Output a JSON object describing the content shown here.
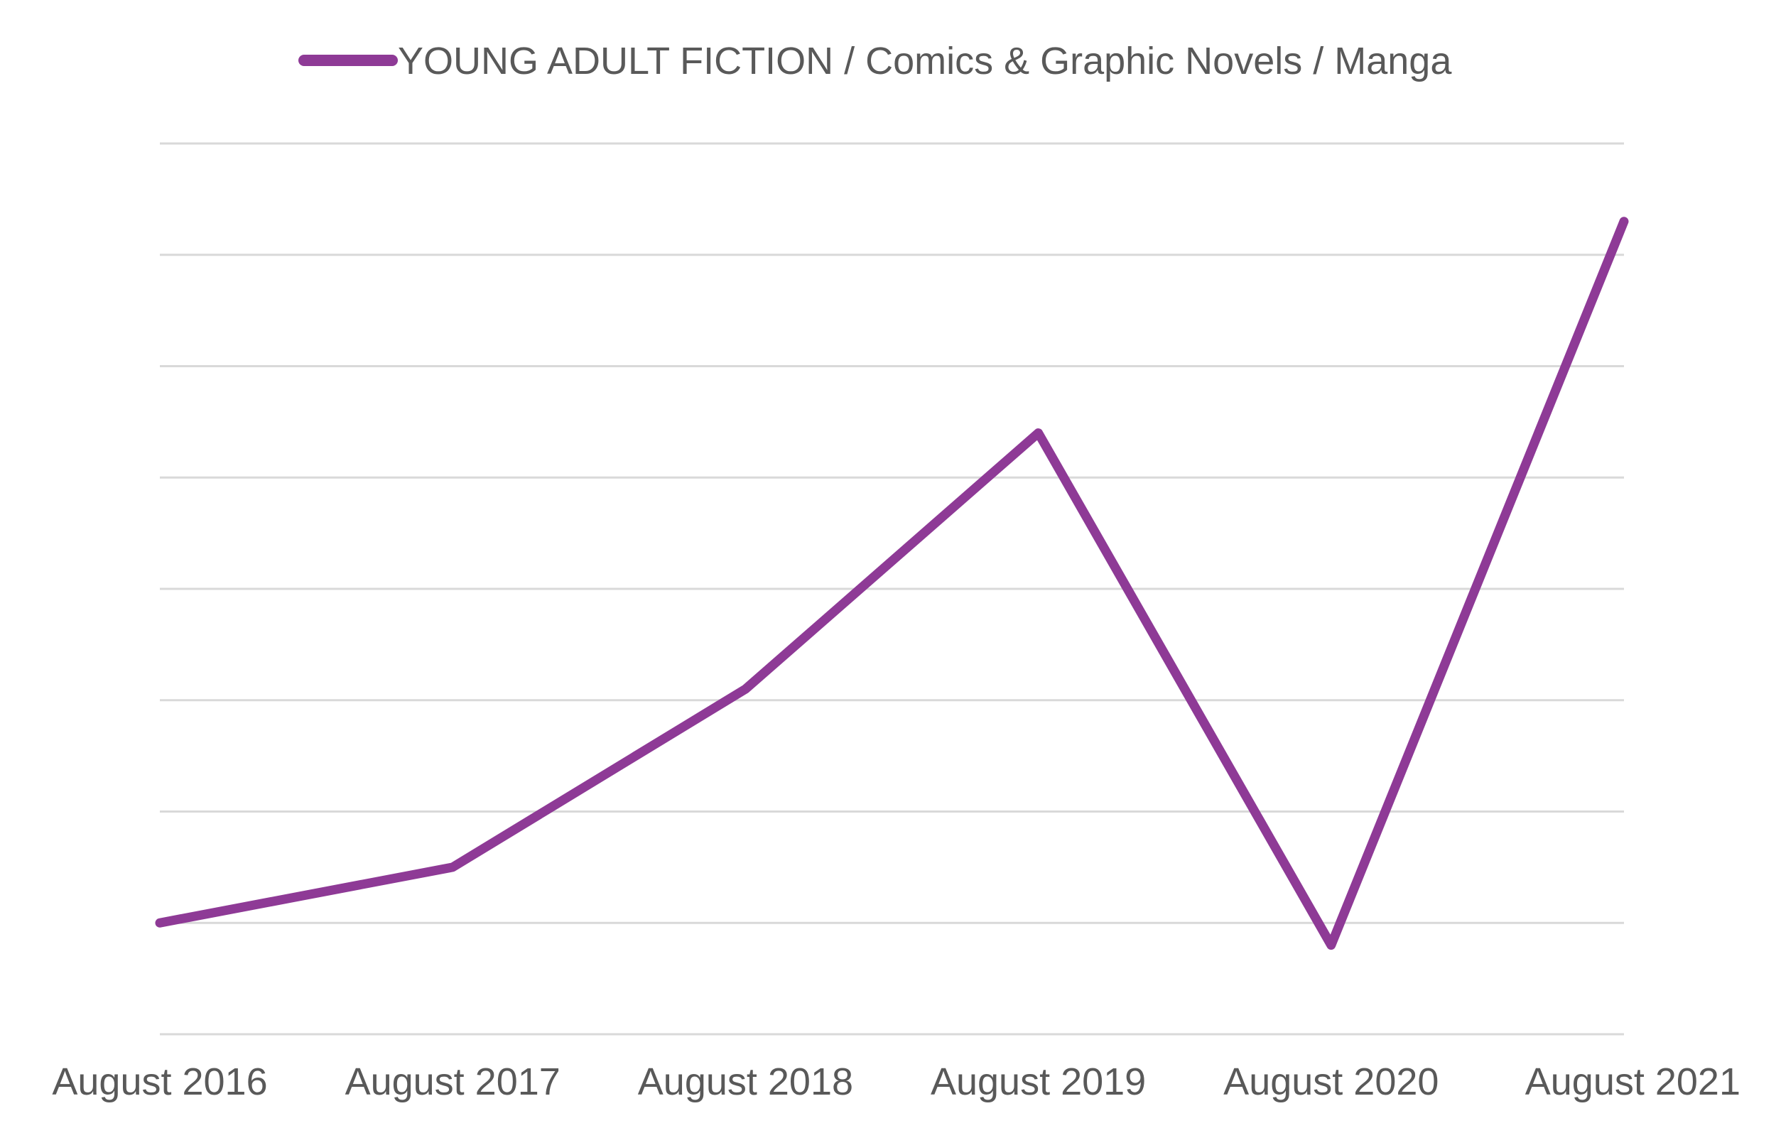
{
  "chart_data": {
    "type": "line",
    "categories": [
      "August 2016",
      "August 2017",
      "August 2018",
      "August 2019",
      "August 2020",
      "August 2021"
    ],
    "series": [
      {
        "name": "YOUNG ADULT FICTION / Comics & Graphic Novels / Manga",
        "values": [
          1.0,
          1.5,
          3.1,
          5.4,
          0.8,
          7.3
        ],
        "color": "#8e3a96"
      }
    ],
    "ylim": [
      0,
      8
    ],
    "grid": true,
    "y_tick_labels_shown": false,
    "legend_position": "top-center",
    "text_color": "#595959",
    "grid_color": "#d9d9d9"
  }
}
